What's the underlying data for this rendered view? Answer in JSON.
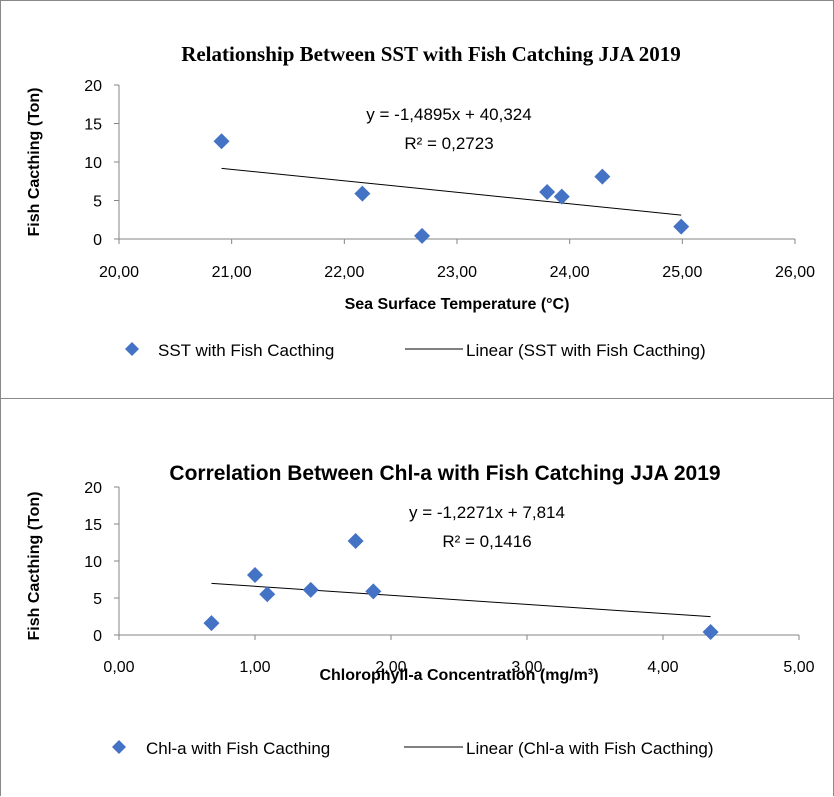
{
  "chart_data": [
    {
      "type": "scatter",
      "title": "Relationship Between SST with Fish Catching JJA 2019",
      "xlabel": "Sea Surface Temperature (°C)",
      "ylabel": "Fish Cacthing (Ton)",
      "xlim": [
        20,
        26
      ],
      "ylim": [
        0,
        20
      ],
      "x_ticks": [
        "20,00",
        "21,00",
        "22,00",
        "23,00",
        "24,00",
        "25,00",
        "26,00"
      ],
      "y_ticks": [
        "0",
        "5",
        "10",
        "15",
        "20"
      ],
      "series": [
        {
          "name": "SST with Fish Cacthing",
          "color": "#4472c4",
          "marker": "diamond",
          "points": [
            {
              "x": 20.91,
              "y": 12.7
            },
            {
              "x": 22.16,
              "y": 5.9
            },
            {
              "x": 22.69,
              "y": 0.4
            },
            {
              "x": 23.8,
              "y": 6.1
            },
            {
              "x": 23.93,
              "y": 5.5
            },
            {
              "x": 24.29,
              "y": 8.1
            },
            {
              "x": 24.99,
              "y": 1.6
            }
          ]
        }
      ],
      "trendline": {
        "name": "Linear (SST with Fish Cacthing)",
        "slope": -1.4895,
        "intercept": 40.324,
        "x_range": [
          20.91,
          24.99
        ],
        "equation": "y = -1,4895x + 40,324",
        "r2": "R² = 0,2723"
      },
      "legend_position": "bottom"
    },
    {
      "type": "scatter",
      "title": "Correlation Between Chl-a with Fish Catching JJA 2019",
      "xlabel": "Chlorophyll-a Concentration (mg/m³)",
      "ylabel": "Fish Cacthing (Ton)",
      "xlim": [
        0,
        5
      ],
      "ylim": [
        0,
        20
      ],
      "x_ticks": [
        "0,00",
        "1,00",
        "2,00",
        "3,00",
        "4,00",
        "5,00"
      ],
      "y_ticks": [
        "0",
        "5",
        "10",
        "15",
        "20"
      ],
      "series": [
        {
          "name": "Chl-a with Fish Cacthing",
          "color": "#4472c4",
          "marker": "diamond",
          "points": [
            {
              "x": 0.68,
              "y": 1.6
            },
            {
              "x": 1.0,
              "y": 8.1
            },
            {
              "x": 1.09,
              "y": 5.5
            },
            {
              "x": 1.41,
              "y": 6.1
            },
            {
              "x": 1.74,
              "y": 12.7
            },
            {
              "x": 1.87,
              "y": 5.9
            },
            {
              "x": 4.35,
              "y": 0.4
            }
          ]
        }
      ],
      "trendline": {
        "name": "Linear (Chl-a with Fish Cacthing)",
        "slope": -1.2271,
        "intercept": 7.814,
        "x_range": [
          0.68,
          4.35
        ],
        "equation": "y = -1,2271x + 7,814",
        "r2": "R² = 0,1416"
      },
      "legend_position": "bottom"
    }
  ]
}
